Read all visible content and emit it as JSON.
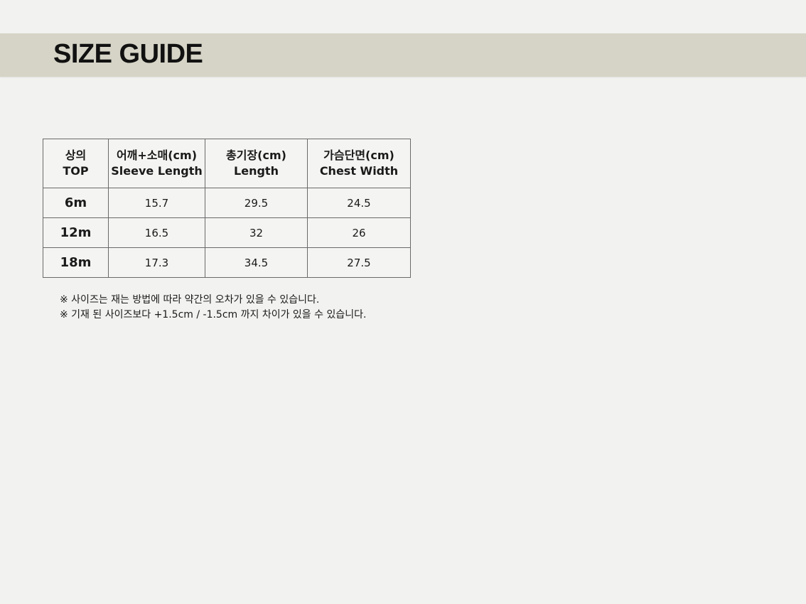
{
  "header": {
    "title": "SIZE GUIDE",
    "background_color": "#d5d4c6"
  },
  "table": {
    "columns": [
      {
        "line1": "상의",
        "line2": "TOP"
      },
      {
        "line1": "어깨+소매(cm)",
        "line2": "Sleeve Length"
      },
      {
        "line1": "총기장(cm)",
        "line2": "Length"
      },
      {
        "line1": "가슴단면(cm)",
        "line2": "Chest Width"
      }
    ],
    "rows": [
      {
        "size": "6m",
        "values": [
          "15.7",
          "29.5",
          "24.5"
        ]
      },
      {
        "size": "12m",
        "values": [
          "16.5",
          "32",
          "26"
        ]
      },
      {
        "size": "18m",
        "values": [
          "17.3",
          "34.5",
          "27.5"
        ]
      }
    ]
  },
  "notes": [
    "※ 사이즈는 재는 방법에 따라 약간의 오차가 있을 수 있습니다.",
    "※ 기재 된 사이즈보다 +1.5cm / -1.5cm 까지 차이가 있을 수 있습니다."
  ]
}
